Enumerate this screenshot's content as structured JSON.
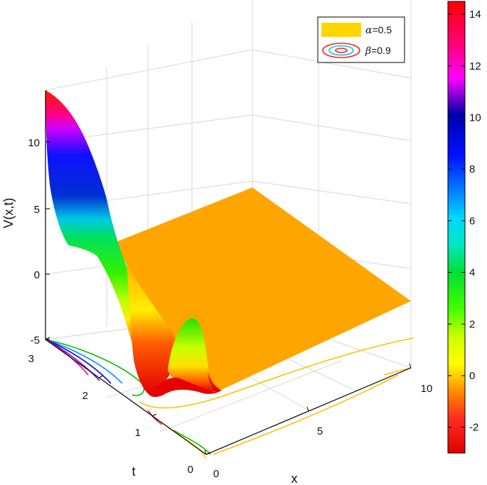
{
  "chart_data": {
    "type": "surface",
    "zlabel": "V(x,t)",
    "xlabel": "x",
    "tlabel": "t",
    "x_ticks": [
      "0",
      "5",
      "10"
    ],
    "t_ticks": [
      "0",
      "1",
      "2",
      "3"
    ],
    "z_ticks": [
      "-5",
      "0",
      "5",
      "10"
    ],
    "xlim": [
      0,
      10
    ],
    "tlim": [
      0,
      3
    ],
    "zlim": [
      -5,
      14
    ],
    "grid": true,
    "legend": {
      "placement": "top-right",
      "entries": [
        {
          "symbol": "α",
          "value": "=0.5",
          "color": "#ffd700"
        },
        {
          "symbol": "β",
          "value": "=0.9",
          "color": "#ff3030"
        }
      ]
    },
    "colorbar": {
      "ticks": [
        "-2",
        "0",
        "2",
        "4",
        "6",
        "8",
        "10",
        "12",
        "14"
      ],
      "range": [
        -3,
        14.5
      ]
    },
    "surface_peak": 14,
    "plateau_value": 0
  }
}
